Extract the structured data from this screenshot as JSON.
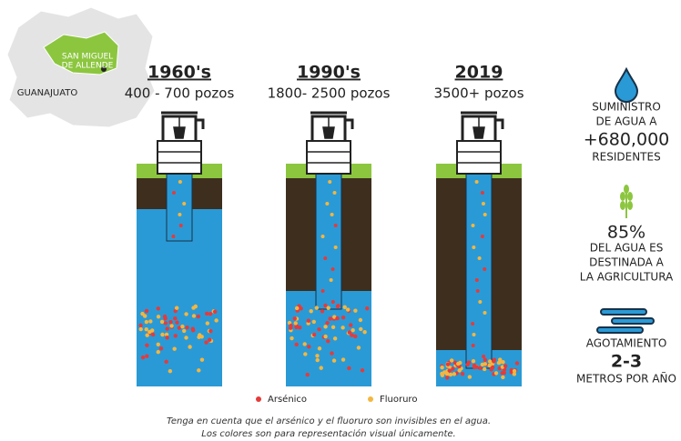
{
  "map": {
    "city": [
      "SAN MIGUEL",
      "DE ALLENDE"
    ],
    "state": "GUANAJUATO"
  },
  "wells": [
    {
      "period": "1960's",
      "count": "400 - 700 pozos"
    },
    {
      "period": "1990's",
      "count": "1800- 2500 pozos"
    },
    {
      "period": "2019",
      "count": "3500+ pozos"
    }
  ],
  "legend": [
    "Arsénico",
    "Fluoruro"
  ],
  "note": [
    "Tenga en cuenta que el arsénico y el fluoruro son invisibles en el agua.",
    "Los colores son para representación visual únicamente."
  ],
  "stats": [
    {
      "label": [
        "SUMINISTRO",
        "DE AGUA A"
      ],
      "value": "+680,000",
      "unit": [
        "RESIDENTES"
      ]
    },
    {
      "value": "85%",
      "unit": [
        "DEL AGUA ES",
        "DESTINADA A",
        "LA AGRICULTURA"
      ]
    },
    {
      "label": [
        "AGOTAMIENTO"
      ],
      "value": "2-3",
      "unit": [
        "METROS POR AÑO"
      ]
    }
  ]
}
